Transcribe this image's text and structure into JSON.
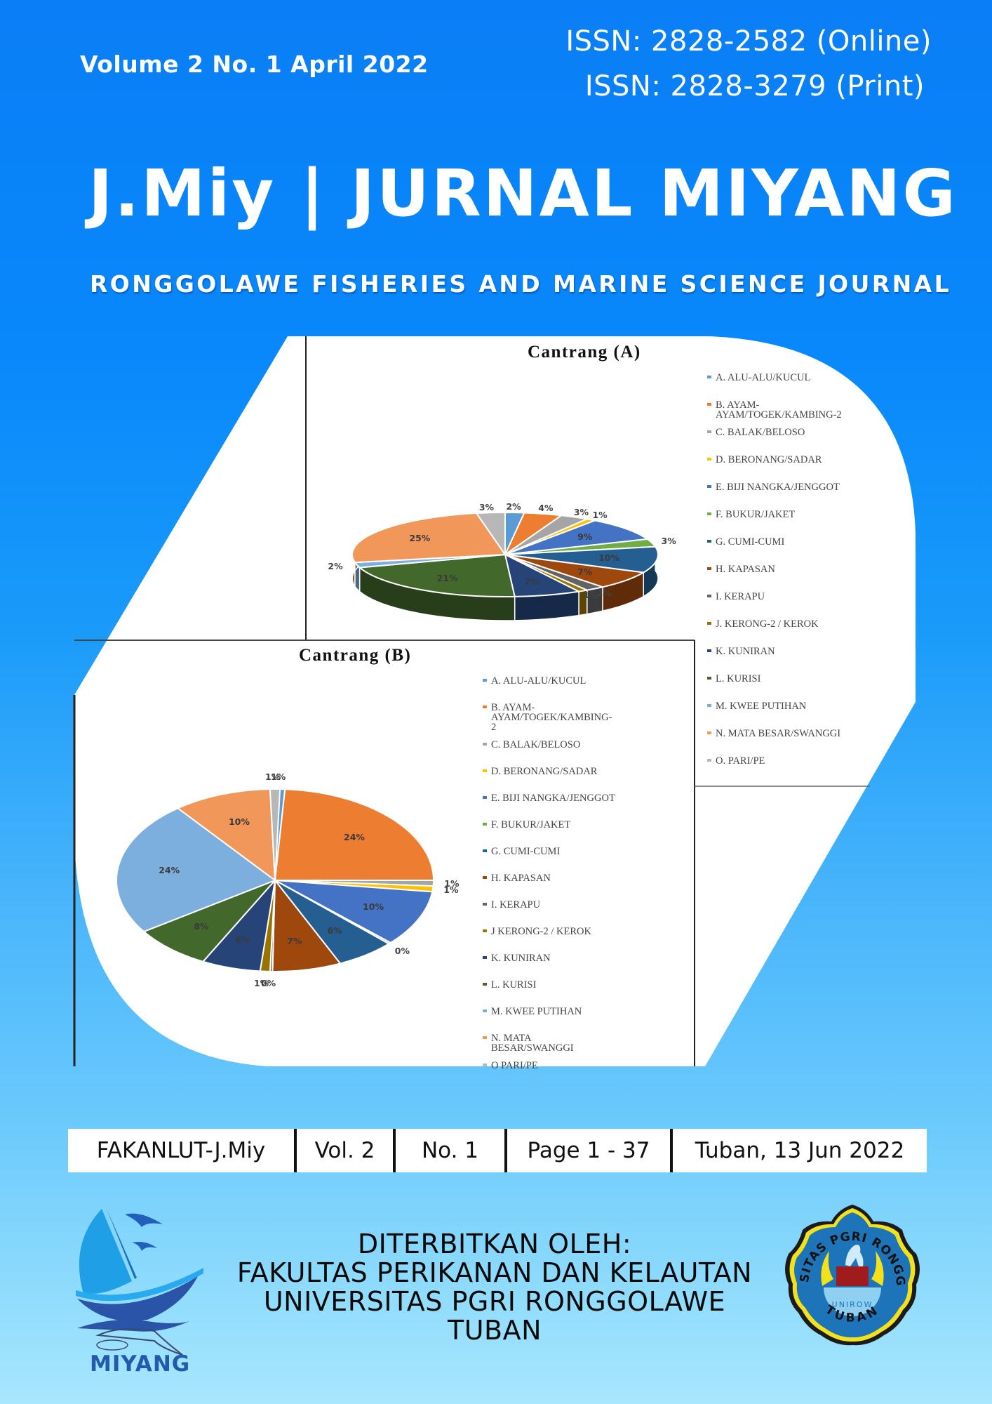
{
  "header": {
    "volume_line": "Volume 2 No. 1 April 2022",
    "issn_online": "ISSN: 2828-2582 (Online)",
    "issn_print": "ISSN: 2828-3279 (Print)",
    "title": "J.Miy | JURNAL MIYANG",
    "subtitle": "RONGGOLAWE FISHERIES AND MARINE SCIENCE  JOURNAL"
  },
  "colors": {
    "background_top": "#0a7ef6",
    "background_bottom": "#a8e7fd",
    "text": "#ffffff",
    "slices": {
      "A": "#5b9bd5",
      "B": "#ed7d31",
      "C": "#a5a5a5",
      "D": "#ffc000",
      "E": "#4472c4",
      "F": "#70ad47",
      "G": "#255e91",
      "H": "#9e480e",
      "I": "#636363",
      "J": "#997300",
      "K": "#264478",
      "L": "#43682b",
      "M": "#7cafdd",
      "N": "#f1975a",
      "O": "#b7b7b7"
    }
  },
  "chart_data": [
    {
      "type": "pie",
      "title": "Cantrang  (A)",
      "style": "3d",
      "categories": [
        "A. ALU-ALU/KUCUL",
        "B. AYAM-AYAM/TOGEK/KAMBING-2",
        "C. BALAK/BELOSO",
        "D. BERONANG/SADAR",
        "E. BIJI NANGKA/JENGGOT",
        "F. BUKUR/JAKET",
        "G. CUMI-CUMI",
        "H. KAPASAN",
        "I. KERAPU",
        "J. KERONG-2 / KEROK",
        "K. KUNIRAN",
        "L. KURISI",
        "M. KWEE PUTIHAN",
        "N. MATA BESAR/SWANGGI",
        "O. PARI/PE"
      ],
      "values": [
        2,
        4,
        3,
        1,
        9,
        3,
        10,
        7,
        2,
        1,
        7,
        21,
        2,
        25,
        3
      ],
      "labels": [
        "2%",
        "4%",
        "3%",
        "1%",
        "9%",
        "3%",
        "10%",
        "7%",
        "2%",
        "1%",
        "7%",
        "21%",
        "2%",
        "25%",
        "3%"
      ],
      "legend_position": "right"
    },
    {
      "type": "pie",
      "title": "Cantrang  (B)",
      "style": "2d",
      "categories": [
        "A. ALU-ALU/KUCUL",
        "B. AYAM-AYAM/TOGEK/KAMBING-2",
        "C. BALAK/BELOSO",
        "D. BERONANG/SADAR",
        "E. BIJI NANGKA/JENGGOT",
        "F. BUKUR/JAKET",
        "G. CUMI-CUMI",
        "H. KAPASAN",
        "I. KERAPU",
        "J KERONG-2 / KEROK",
        "K. KUNIRAN",
        "L. KURISI",
        "M. KWEE PUTIHAN",
        "N. MATA BESAR/SWANGGI",
        "O PARI/PE"
      ],
      "values": [
        1,
        24,
        1,
        1,
        10,
        0,
        6,
        7,
        0,
        1,
        6,
        8,
        24,
        10,
        1
      ],
      "labels": [
        "1%",
        "24%",
        "1%",
        "1%",
        "10%",
        "0%",
        "6%",
        "7%",
        "0%",
        "1%",
        "6%",
        "8%",
        "24%",
        "10%",
        "1%"
      ],
      "legend_position": "right"
    }
  ],
  "figure": {
    "legend_a": [
      "A. ALU-ALU/KUCUL",
      "B. AYAM-",
      "AYAM/TOGEK/KAMBING-2",
      "C. BALAK/BELOSO",
      "D. BERONANG/SADAR",
      "E. BIJI NANGKA/JENGGOT",
      "F. BUKUR/JAKET",
      "G. CUMI-CUMI",
      "H. KAPASAN",
      "I. KERAPU",
      "J. KERONG-2 / KEROK",
      "K. KUNIRAN",
      "L. KURISI",
      "M. KWEE PUTIHAN",
      "N. MATA BESAR/SWANGGI",
      "O. PARI/PE"
    ],
    "legend_b": [
      "A. ALU-ALU/KUCUL",
      "B. AYAM-",
      "AYAM/TOGEK/KAMBING-",
      "2",
      "C. BALAK/BELOSO",
      "D. BERONANG/SADAR",
      "E. BIJI NANGKA/JENGGOT",
      "F. BUKUR/JAKET",
      "G. CUMI-CUMI",
      "H. KAPASAN",
      "I. KERAPU",
      "J KERONG-2 / KEROK",
      "K. KUNIRAN",
      "L. KURISI",
      "M. KWEE PUTIHAN",
      "N. MATA",
      "BESAR/SWANGGI",
      "O PARI/PE"
    ]
  },
  "info_bar": {
    "publisher_code": "FAKANLUT-J.Miy",
    "volume": "Vol. 2",
    "number": "No. 1",
    "pages": "Page 1 - 37",
    "place_date": "Tuban, 13 Jun 2022"
  },
  "publisher": {
    "line1": "DITERBITKAN OLEH:",
    "line2": "FAKULTAS PERIKANAN DAN KELAUTAN",
    "line3": "UNIVERSITAS PGRI RONGGOLAWE",
    "line4": "TUBAN"
  },
  "logos": {
    "miyang_label": "MIYANG",
    "unirow_ring_top": "UNIVERSITAS PGRI RONGGOLAWE",
    "unirow_ring_bottom": "TUBAN",
    "unirow_inner": "UNIROW"
  }
}
